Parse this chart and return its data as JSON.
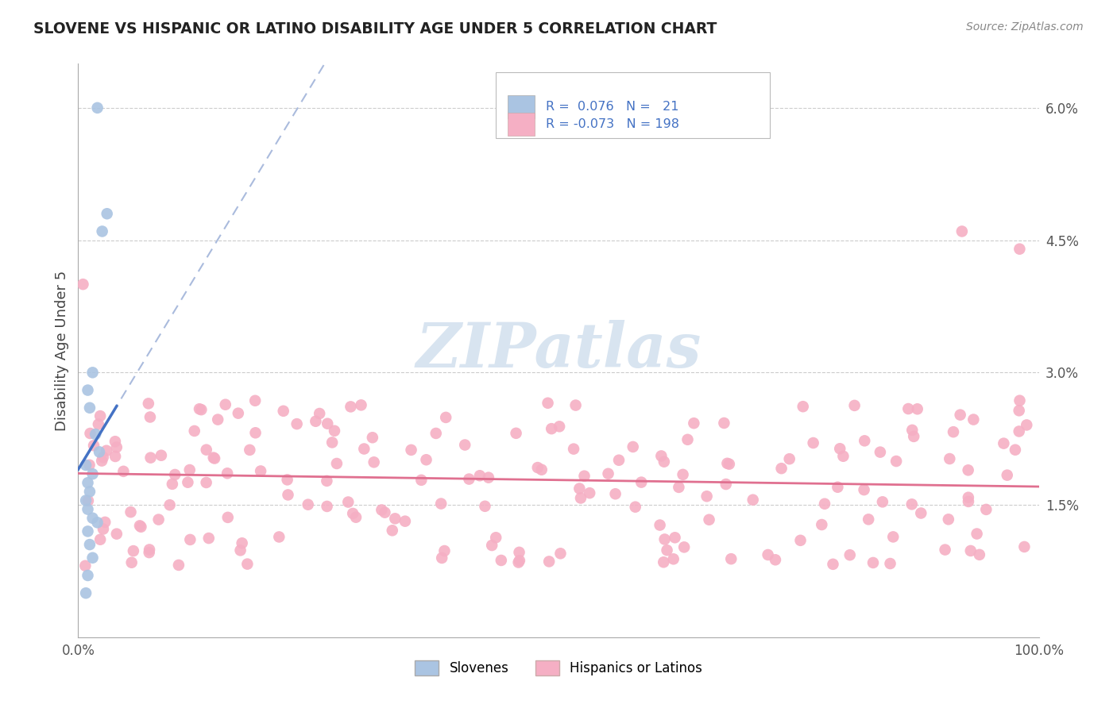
{
  "title": "SLOVENE VS HISPANIC OR LATINO DISABILITY AGE UNDER 5 CORRELATION CHART",
  "source": "Source: ZipAtlas.com",
  "ylabel": "Disability Age Under 5",
  "xlim": [
    0.0,
    1.0
  ],
  "ylim": [
    0.0,
    0.065
  ],
  "color_slovene": "#aac4e2",
  "color_hispanic": "#f5afc4",
  "color_slovene_line": "#4472c4",
  "color_hispanic_line": "#e07090",
  "color_legend_text_blue": "#4472c4",
  "watermark_color": "#d8e4f0",
  "background_color": "#ffffff",
  "grid_color": "#cccccc",
  "spine_color": "#aaaaaa",
  "legend_r1": "R =  0.076",
  "legend_n1": "N =  21",
  "legend_r2": "R = -0.073",
  "legend_n2": "N = 198"
}
